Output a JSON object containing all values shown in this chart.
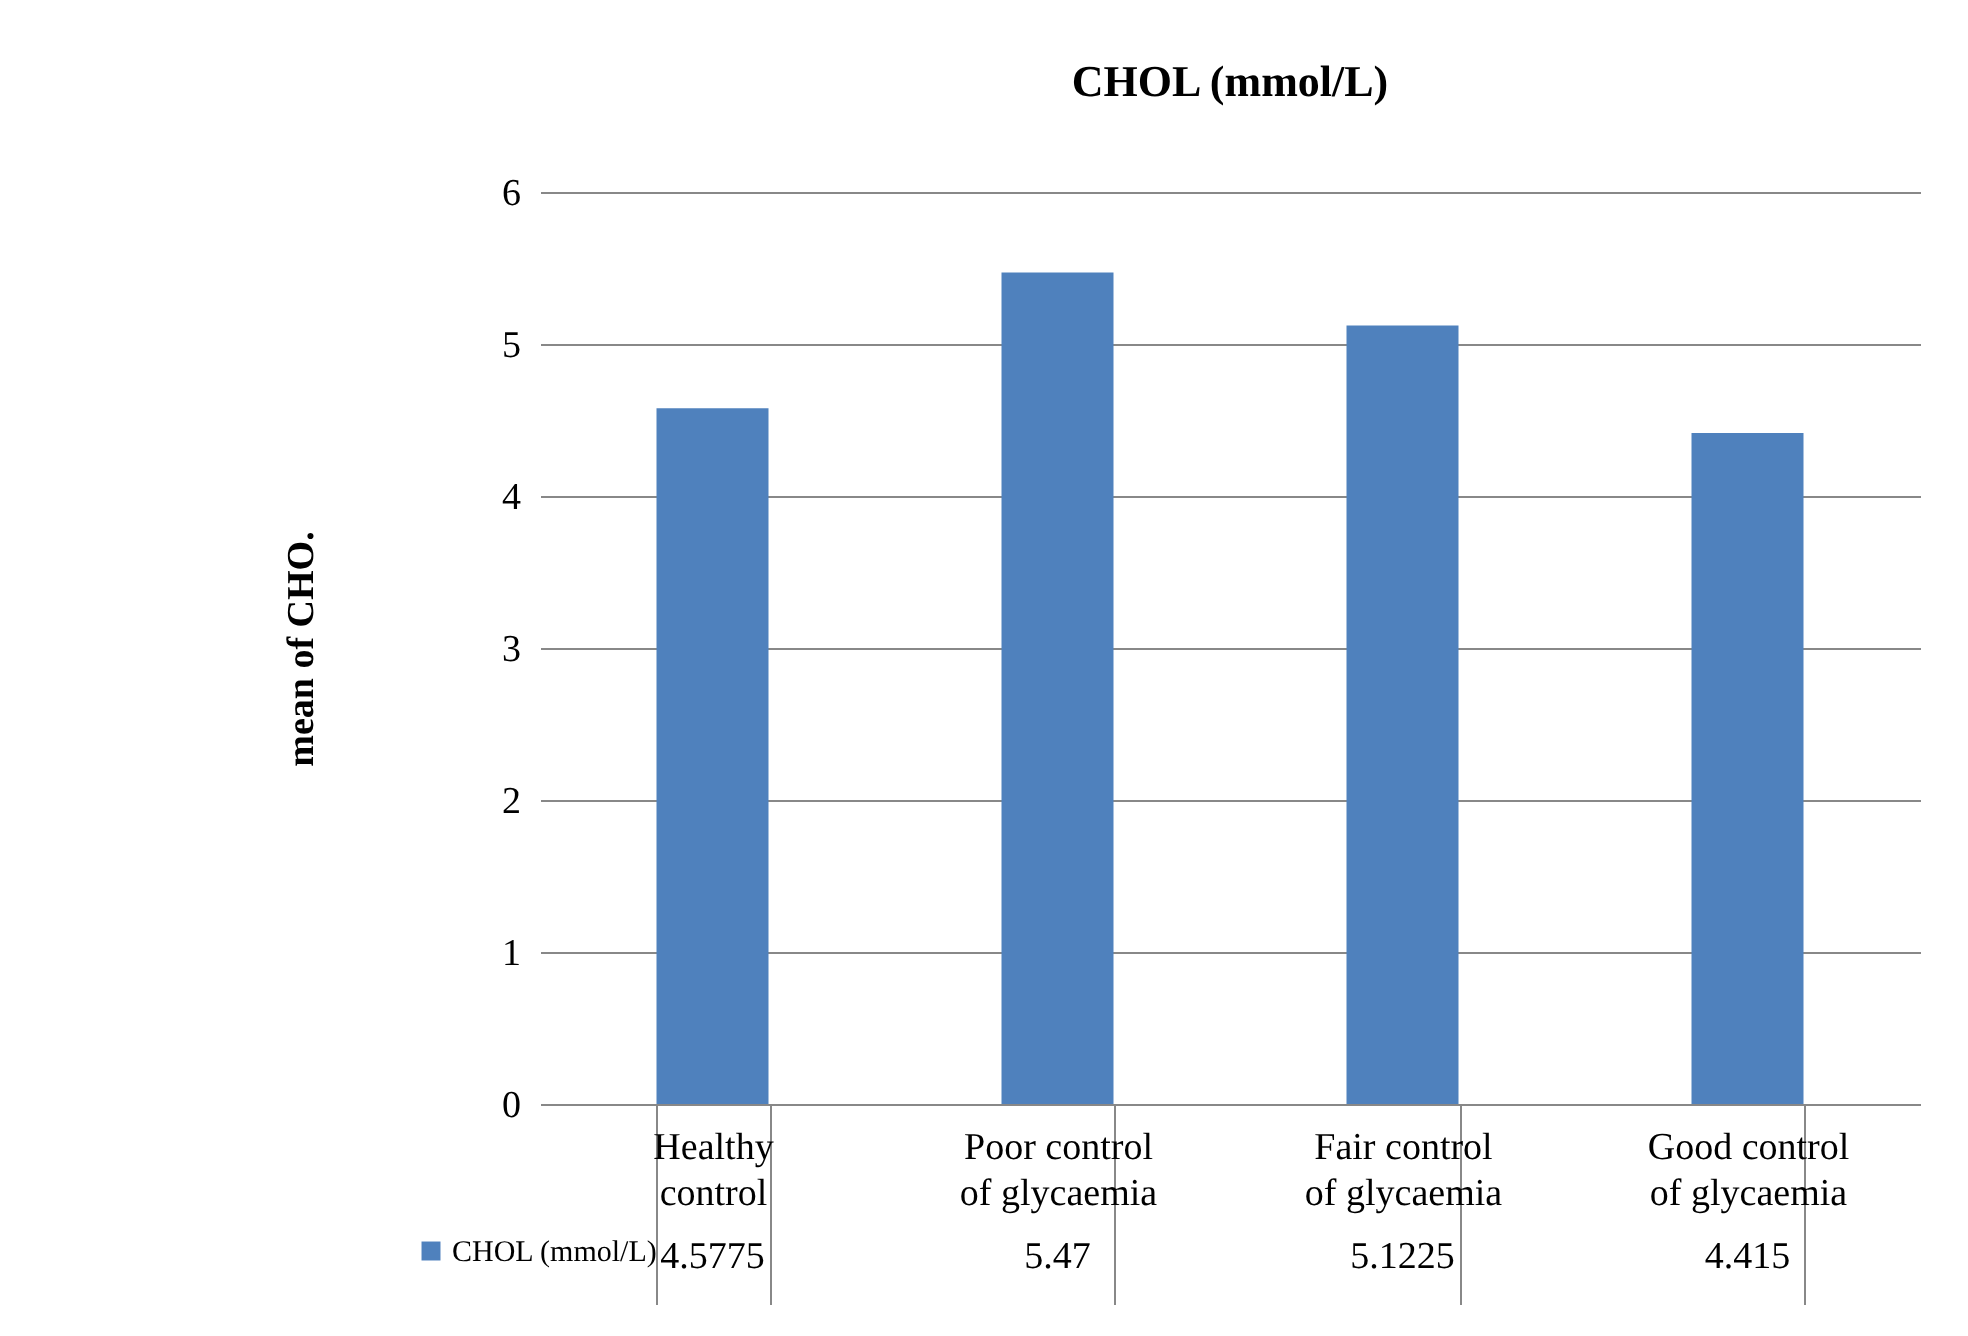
{
  "chart_data": {
    "type": "bar",
    "title": "CHOL (mmol/L)",
    "ylabel": "mean of CHO.",
    "categories": [
      "Healthy control",
      "Poor control of glycaemia",
      "Fair control of glycaemia",
      "Good control of glycaemia"
    ],
    "series": [
      {
        "name": "CHOL (mmol/L)",
        "color": "#4f81bd",
        "values": [
          4.5775,
          5.47,
          5.1225,
          4.415
        ]
      }
    ],
    "ylim": [
      0,
      6
    ],
    "yticks": [
      0,
      1,
      2,
      3,
      4,
      5,
      6
    ],
    "grid": "y",
    "legend": "bottom left",
    "data_labels": true
  }
}
